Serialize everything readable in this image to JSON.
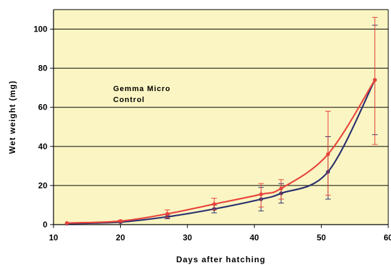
{
  "chart_data": {
    "type": "line",
    "title": "",
    "xlabel": "Days after hatching",
    "ylabel": "Wet weight (mg)",
    "xlim": [
      10,
      60
    ],
    "ylim": [
      0,
      110
    ],
    "xticks": [
      10,
      20,
      30,
      40,
      50,
      60
    ],
    "yticks": [
      0,
      20,
      40,
      60,
      80,
      100
    ],
    "grid": "horizontal",
    "legend": [
      "Gemma Micro",
      "Control"
    ],
    "legend_placement": "upper-left, inside plot",
    "background_color": "#faf5c2",
    "series": [
      {
        "name": "Gemma Micro",
        "color": "#e8443c",
        "x": [
          12,
          20,
          27,
          34,
          41,
          44,
          51,
          58
        ],
        "y": [
          0.8,
          1.8,
          5.5,
          10.5,
          15.5,
          18.5,
          36,
          74
        ],
        "error_low": [
          0.8,
          1.4,
          3.5,
          7.5,
          9,
          13,
          15,
          41
        ],
        "error_high": [
          0.8,
          2.2,
          7.5,
          13.5,
          21,
          23,
          58,
          106
        ]
      },
      {
        "name": "Control",
        "color": "#2a2f6e",
        "x": [
          12,
          20,
          27,
          34,
          41,
          44,
          51,
          58
        ],
        "y": [
          0.5,
          1.3,
          4,
          8,
          13,
          16,
          27,
          74
        ],
        "error_low": [
          0.5,
          1.0,
          3,
          6,
          7,
          11,
          13,
          46
        ],
        "error_high": [
          0.5,
          1.6,
          5,
          10,
          19,
          21,
          45,
          102
        ]
      }
    ]
  }
}
